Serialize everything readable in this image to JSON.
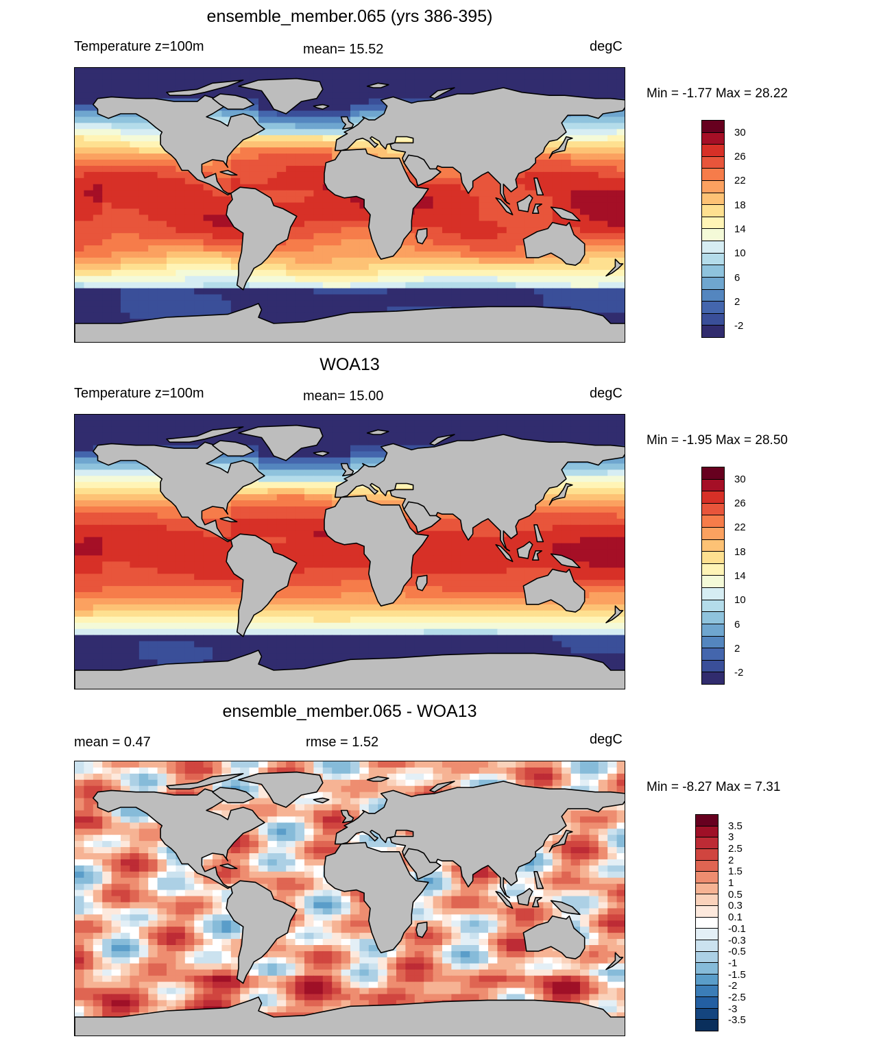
{
  "panels": [
    {
      "title": "ensemble_member.065 (yrs 386-395)",
      "left_label": "Temperature z=100m",
      "center_label": "mean=  15.52",
      "units": "degC",
      "minmax": "Min =  -1.77 Max =  28.22",
      "colorbar": {
        "colors": [
          "#67001f",
          "#a50f26",
          "#d73027",
          "#e8553b",
          "#f67c4a",
          "#fba160",
          "#fdc275",
          "#fee090",
          "#fff4b6",
          "#f4fad8",
          "#d6edf3",
          "#b4dcea",
          "#8fc3dd",
          "#6fa6cf",
          "#5486bf",
          "#4466ad",
          "#3a4f99",
          "#312c6e"
        ],
        "labels": [
          "30",
          "26",
          "22",
          "18",
          "14",
          "10",
          "6",
          "2",
          "-2"
        ],
        "label_positions": [
          1,
          3,
          5,
          7,
          9,
          11,
          13,
          15,
          17
        ]
      },
      "field": "ref"
    },
    {
      "title": "WOA13",
      "left_label": "Temperature z=100m",
      "center_label": "mean=  15.00",
      "units": "degC",
      "minmax": "Min =  -1.95 Max =  28.50",
      "colorbar": {
        "colors": [
          "#67001f",
          "#a50f26",
          "#d73027",
          "#e8553b",
          "#f67c4a",
          "#fba160",
          "#fdc275",
          "#fee090",
          "#fff4b6",
          "#f4fad8",
          "#d6edf3",
          "#b4dcea",
          "#8fc3dd",
          "#6fa6cf",
          "#5486bf",
          "#4466ad",
          "#3a4f99",
          "#312c6e"
        ],
        "labels": [
          "30",
          "26",
          "22",
          "18",
          "14",
          "10",
          "6",
          "2",
          "-2"
        ],
        "label_positions": [
          1,
          3,
          5,
          7,
          9,
          11,
          13,
          15,
          17
        ]
      },
      "field": "obs"
    },
    {
      "title": "ensemble_member.065 - WOA13",
      "left_label": "mean =   0.47",
      "center_label": "rmse =   1.52",
      "units": "degC",
      "minmax": "Min =  -8.27 Max =   7.31",
      "colorbar": {
        "colors": [
          "#67001f",
          "#9f1027",
          "#bd2b35",
          "#d0453f",
          "#df6552",
          "#ee8d70",
          "#f6b394",
          "#fad2bb",
          "#fde9dd",
          "#ffffff",
          "#e3eff6",
          "#cbe2ef",
          "#acd0e5",
          "#86bbd9",
          "#5a9dc9",
          "#3b7db7",
          "#235fa2",
          "#14457f",
          "#0a2f5c"
        ],
        "labels": [
          "3.5",
          "3",
          "2.5",
          "2",
          "1.5",
          "1",
          "0.5",
          "0.3",
          "0.1",
          "-0.1",
          "-0.3",
          "-0.5",
          "-1",
          "-1.5",
          "-2",
          "-2.5",
          "-3",
          "-3.5"
        ],
        "label_positions": [
          1,
          2,
          3,
          4,
          5,
          6,
          7,
          8,
          9,
          10,
          11,
          12,
          13,
          14,
          15,
          16,
          17,
          18
        ]
      },
      "field": "diff"
    }
  ]
}
